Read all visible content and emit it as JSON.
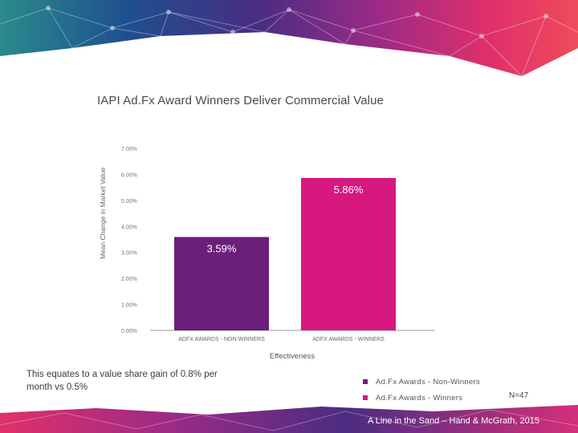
{
  "slide": {
    "caption": "This equates to a value share gain of 0.8% per month vs 0.5%",
    "sample_note": "N=47",
    "citation": "A Line in the Sand – Hand & McGrath, 2015"
  },
  "chart_data": {
    "type": "bar",
    "title": "IAPI Ad.Fx Award Winners Deliver Commercial Value",
    "xlabel": "Effectiveness",
    "ylabel": "Mean Change in Market Value",
    "ylim": [
      0,
      7
    ],
    "y_ticks": [
      "0.00%",
      "1.00%",
      "2.00%",
      "3.00%",
      "4.00%",
      "5.00%",
      "6.00%",
      "7.00%"
    ],
    "categories": [
      "ADFX AWARDS - NON-WINNERS",
      "ADFX AWARDS - WINNERS"
    ],
    "values": [
      3.59,
      5.86
    ],
    "data_labels": [
      "3.59%",
      "5.86%"
    ],
    "colors": [
      "#6b1f7b",
      "#d6187f"
    ],
    "legend": [
      {
        "label": "Ad.Fx Awards - Non-Winners",
        "color": "#6b1f7b"
      },
      {
        "label": "Ad.Fx Awards - Winners",
        "color": "#d6187f"
      }
    ],
    "grid": false,
    "legend_position": "bottom"
  }
}
